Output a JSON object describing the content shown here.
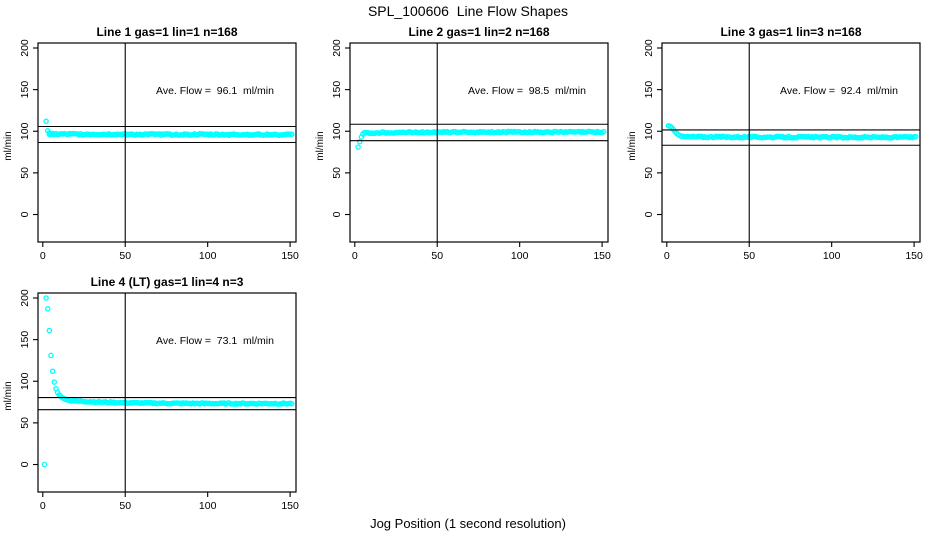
{
  "page": {
    "title": "SPL_100606  Line Flow Shapes",
    "xlabel": "Jog Position (1 second resolution)"
  },
  "chart_data": [
    {
      "type": "scatter",
      "title": "Line 1 gas=1 lin=1 n=168",
      "ylabel": "ml/min",
      "annotation": "Ave. Flow =  96.1  ml/min",
      "ave_flow": 96.1,
      "hline_upper": 105.7,
      "hline_lower": 86.5,
      "vline_x": 50,
      "x_ticks": [
        0,
        50,
        100,
        150
      ],
      "y_ticks": [
        0,
        50,
        100,
        150,
        200
      ],
      "xlim": [
        0,
        151
      ],
      "ylim": [
        -33,
        206
      ],
      "marker_color": "#00ffff",
      "transient_points": [
        [
          2,
          112
        ],
        [
          3,
          100.5
        ],
        [
          4,
          98
        ]
      ],
      "band": {
        "x_start": 4,
        "x_end": 151,
        "start_value": 96.5,
        "end_value": 95.4,
        "tau": 200,
        "jitter": 0.9
      }
    },
    {
      "type": "scatter",
      "title": "Line 2 gas=1 lin=2 n=168",
      "ylabel": "ml/min",
      "annotation": "Ave. Flow =  98.5  ml/min",
      "ave_flow": 98.5,
      "hline_upper": 108.4,
      "hline_lower": 88.7,
      "vline_x": 50,
      "x_ticks": [
        0,
        50,
        100,
        150
      ],
      "y_ticks": [
        0,
        50,
        100,
        150,
        200
      ],
      "xlim": [
        0,
        151
      ],
      "ylim": [
        -33,
        206
      ],
      "marker_color": "#00ffff",
      "transient_points": [
        [
          2,
          81
        ],
        [
          3,
          87.5
        ],
        [
          4,
          93
        ],
        [
          5,
          96.5
        ]
      ],
      "band": {
        "x_start": 5,
        "x_end": 151,
        "start_value": 97.6,
        "end_value": 99.0,
        "tau": 18,
        "jitter": 0.8
      }
    },
    {
      "type": "scatter",
      "title": "Line 3 gas=1 lin=3 n=168",
      "ylabel": "ml/min",
      "annotation": "Ave. Flow =  92.4  ml/min",
      "ave_flow": 92.4,
      "hline_upper": 101.6,
      "hline_lower": 83.2,
      "vline_x": 50,
      "x_ticks": [
        0,
        50,
        100,
        150
      ],
      "y_ticks": [
        0,
        50,
        100,
        150,
        200
      ],
      "xlim": [
        0,
        151
      ],
      "ylim": [
        -33,
        206
      ],
      "marker_color": "#00ffff",
      "transient_points": [
        [
          1,
          106.5
        ],
        [
          2,
          106
        ],
        [
          3,
          104.5
        ],
        [
          4,
          102
        ],
        [
          5,
          99.5
        ],
        [
          6,
          97.5
        ],
        [
          7,
          96
        ],
        [
          8,
          94.8
        ],
        [
          9,
          93.8
        ]
      ],
      "band": {
        "x_start": 10,
        "x_end": 151,
        "start_value": 93.4,
        "end_value": 92.6,
        "tau": 80,
        "jitter": 0.9
      }
    },
    {
      "type": "scatter",
      "title": "Line 4 (LT) gas=1 lin=4 n=3",
      "ylabel": "ml/min",
      "annotation": "Ave. Flow =  73.1  ml/min",
      "ave_flow": 73.1,
      "hline_upper": 80.4,
      "hline_lower": 65.8,
      "vline_x": 50,
      "x_ticks": [
        0,
        50,
        100,
        150
      ],
      "y_ticks": [
        0,
        50,
        100,
        150,
        200
      ],
      "xlim": [
        0,
        151
      ],
      "ylim": [
        -33,
        206
      ],
      "marker_color": "#00ffff",
      "transient_points": [
        [
          1,
          0
        ],
        [
          2,
          200
        ],
        [
          3,
          187
        ],
        [
          4,
          161
        ],
        [
          5,
          131
        ],
        [
          6,
          112
        ],
        [
          7,
          99
        ],
        [
          8,
          91
        ],
        [
          9,
          86.5
        ],
        [
          10,
          83.5
        ],
        [
          11,
          81.5
        ],
        [
          12,
          80
        ],
        [
          13,
          79
        ],
        [
          14,
          78.2
        ],
        [
          15,
          77.5
        ]
      ],
      "band": {
        "x_start": 16,
        "x_end": 151,
        "start_value": 76.9,
        "end_value": 73.2,
        "tau": 26,
        "jitter": 0.7
      }
    }
  ]
}
